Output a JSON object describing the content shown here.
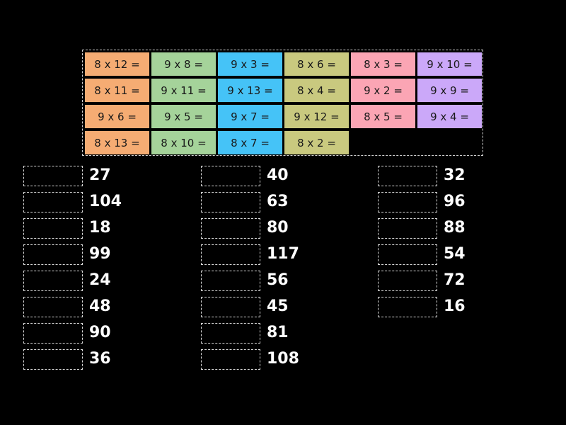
{
  "tile_colors": [
    "#f5ac73",
    "#a5d39a",
    "#45c3f7",
    "#c9c97f",
    "#fba5b4",
    "#cba8f9"
  ],
  "tiles": [
    [
      {
        "text": "8 x 12 =",
        "color": "#f5ac73"
      },
      {
        "text": "9 x 8 =",
        "color": "#a5d39a"
      },
      {
        "text": "9 x 3 =",
        "color": "#45c3f7"
      },
      {
        "text": "8 x 6 =",
        "color": "#c9c97f"
      },
      {
        "text": "8 x 3 =",
        "color": "#fba5b4"
      },
      {
        "text": "9 x 10 =",
        "color": "#cba8f9"
      }
    ],
    [
      {
        "text": "8 x 11 =",
        "color": "#f5ac73"
      },
      {
        "text": "9 x 11 =",
        "color": "#a5d39a"
      },
      {
        "text": "9 x 13 =",
        "color": "#45c3f7"
      },
      {
        "text": "8 x 4 =",
        "color": "#c9c97f"
      },
      {
        "text": "9 x 2 =",
        "color": "#fba5b4"
      },
      {
        "text": "9 x 9 =",
        "color": "#cba8f9"
      }
    ],
    [
      {
        "text": "9 x 6 =",
        "color": "#f5ac73"
      },
      {
        "text": "9 x 5 =",
        "color": "#a5d39a"
      },
      {
        "text": "9 x 7 =",
        "color": "#45c3f7"
      },
      {
        "text": "9 x 12 =",
        "color": "#c9c97f"
      },
      {
        "text": "8 x 5 =",
        "color": "#fba5b4"
      },
      {
        "text": "9 x 4 =",
        "color": "#cba8f9"
      }
    ],
    [
      {
        "text": "8 x 13 =",
        "color": "#f5ac73"
      },
      {
        "text": "8 x 10 =",
        "color": "#a5d39a"
      },
      {
        "text": "8 x 7 =",
        "color": "#45c3f7"
      },
      {
        "text": "8 x 2 =",
        "color": "#c9c97f"
      }
    ]
  ],
  "answers": [
    [
      "27",
      "104",
      "18",
      "99",
      "24",
      "48",
      "90",
      "36"
    ],
    [
      "40",
      "63",
      "80",
      "117",
      "56",
      "45",
      "81",
      "108"
    ],
    [
      "32",
      "96",
      "88",
      "54",
      "72",
      "16"
    ]
  ]
}
